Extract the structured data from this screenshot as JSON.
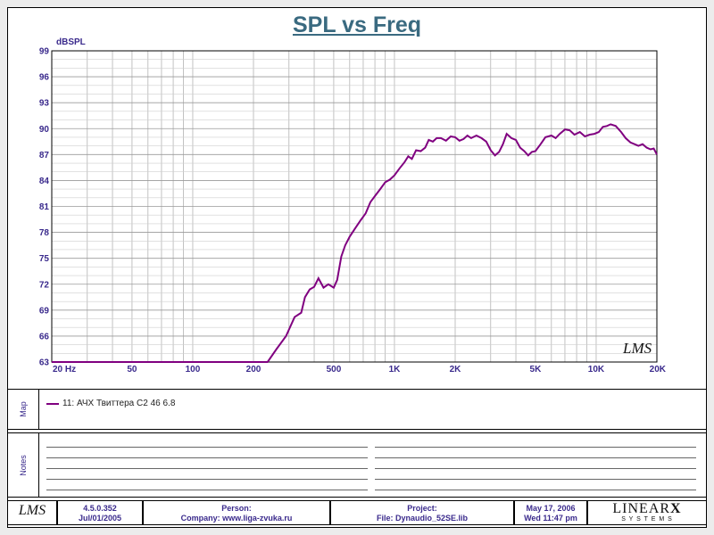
{
  "title": "SPL vs Freq",
  "watermark": "LMS",
  "chart_data": {
    "type": "line",
    "ylabel": "dBSPL",
    "xscale": "log",
    "xlim": [
      20,
      20000
    ],
    "ylim": [
      63,
      99
    ],
    "grid": true,
    "x_ticks": [
      {
        "value": 20,
        "label": "20  Hz"
      },
      {
        "value": 50,
        "label": "50"
      },
      {
        "value": 100,
        "label": "100"
      },
      {
        "value": 200,
        "label": "200"
      },
      {
        "value": 500,
        "label": "500"
      },
      {
        "value": 1000,
        "label": "1K"
      },
      {
        "value": 2000,
        "label": "2K"
      },
      {
        "value": 5000,
        "label": "5K"
      },
      {
        "value": 10000,
        "label": "10K"
      },
      {
        "value": 20000,
        "label": "20K"
      }
    ],
    "y_ticks": [
      63,
      66,
      69,
      72,
      75,
      78,
      81,
      84,
      87,
      90,
      93,
      96,
      99
    ],
    "series": [
      {
        "name": "11: АЧХ Твиттера С2 46 6.8",
        "color": "#800080",
        "points": [
          [
            20,
            63
          ],
          [
            235,
            63
          ],
          [
            260,
            64.5
          ],
          [
            290,
            66
          ],
          [
            320,
            68.2
          ],
          [
            345,
            68.7
          ],
          [
            360,
            70.5
          ],
          [
            380,
            71.4
          ],
          [
            400,
            71.7
          ],
          [
            420,
            72.7
          ],
          [
            445,
            71.6
          ],
          [
            470,
            72
          ],
          [
            500,
            71.6
          ],
          [
            520,
            72.5
          ],
          [
            545,
            75.2
          ],
          [
            570,
            76.5
          ],
          [
            600,
            77.5
          ],
          [
            640,
            78.5
          ],
          [
            680,
            79.4
          ],
          [
            720,
            80.2
          ],
          [
            760,
            81.5
          ],
          [
            800,
            82.2
          ],
          [
            850,
            83
          ],
          [
            900,
            83.8
          ],
          [
            950,
            84.1
          ],
          [
            1000,
            84.6
          ],
          [
            1060,
            85.4
          ],
          [
            1120,
            86.1
          ],
          [
            1170,
            86.8
          ],
          [
            1220,
            86.5
          ],
          [
            1280,
            87.5
          ],
          [
            1350,
            87.4
          ],
          [
            1420,
            87.8
          ],
          [
            1480,
            88.7
          ],
          [
            1550,
            88.5
          ],
          [
            1620,
            88.9
          ],
          [
            1700,
            88.9
          ],
          [
            1800,
            88.6
          ],
          [
            1900,
            89.1
          ],
          [
            2000,
            89
          ],
          [
            2100,
            88.6
          ],
          [
            2200,
            88.8
          ],
          [
            2300,
            89.2
          ],
          [
            2400,
            88.9
          ],
          [
            2550,
            89.2
          ],
          [
            2700,
            88.9
          ],
          [
            2850,
            88.5
          ],
          [
            3000,
            87.5
          ],
          [
            3150,
            86.9
          ],
          [
            3300,
            87.3
          ],
          [
            3450,
            88.2
          ],
          [
            3600,
            89.4
          ],
          [
            3800,
            88.9
          ],
          [
            4000,
            88.7
          ],
          [
            4200,
            87.8
          ],
          [
            4400,
            87.4
          ],
          [
            4600,
            86.9
          ],
          [
            4800,
            87.3
          ],
          [
            5000,
            87.4
          ],
          [
            5300,
            88.2
          ],
          [
            5600,
            89
          ],
          [
            6000,
            89.2
          ],
          [
            6300,
            88.9
          ],
          [
            6600,
            89.4
          ],
          [
            7000,
            89.9
          ],
          [
            7400,
            89.8
          ],
          [
            7800,
            89.3
          ],
          [
            8300,
            89.6
          ],
          [
            8800,
            89.1
          ],
          [
            9300,
            89.3
          ],
          [
            9800,
            89.4
          ],
          [
            10300,
            89.6
          ],
          [
            10800,
            90.2
          ],
          [
            11300,
            90.3
          ],
          [
            11800,
            90.5
          ],
          [
            12500,
            90.3
          ],
          [
            13300,
            89.6
          ],
          [
            14000,
            88.9
          ],
          [
            14800,
            88.4
          ],
          [
            15500,
            88.2
          ],
          [
            16200,
            88
          ],
          [
            17000,
            88.2
          ],
          [
            17800,
            87.8
          ],
          [
            18600,
            87.6
          ],
          [
            19300,
            87.7
          ],
          [
            20000,
            87
          ]
        ]
      }
    ]
  },
  "map_panel": {
    "label": "Map",
    "entry": "11: АЧХ Твиттера С2 46 6.8"
  },
  "notes_panel": {
    "label": "Notes"
  },
  "footer": {
    "logo": "LMS",
    "version": "4.5.0.352",
    "version_date": "Jul/01/2005",
    "person_label": "Person:",
    "company": "Company: www.liga-zvuka.ru",
    "project_label": "Project:",
    "file": "File: Dynaudio_52SE.lib",
    "date": "May 17, 2006",
    "time": "Wed 11:47 pm",
    "brand": "LINEAR",
    "brand_mark": "X",
    "brand_sub": "S Y S T E M S"
  }
}
